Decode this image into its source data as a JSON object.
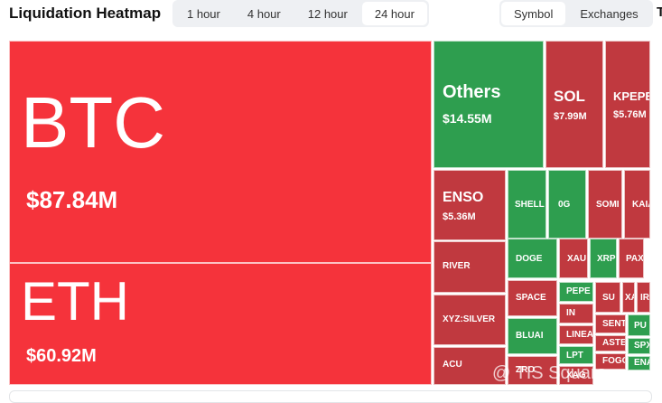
{
  "header": {
    "title": "Liquidation Heatmap",
    "time_ranges": [
      "1 hour",
      "4 hour",
      "12 hour",
      "24 hour"
    ],
    "active_range": 3,
    "views": [
      "Symbol",
      "Exchanges"
    ],
    "active_view": 0,
    "cut_off": "T"
  },
  "watermark": "@ TIS Square",
  "tiles": [
    {
      "label": "BTC",
      "value": "$87.84M",
      "color": "#f5333b"
    },
    {
      "label": "ETH",
      "value": "$60.92M",
      "color": "#f5333b"
    },
    {
      "label": "Others",
      "value": "$14.55M",
      "color": "#2e9e4f"
    },
    {
      "label": "SOL",
      "value": "$7.99M",
      "color": "#c0393f"
    },
    {
      "label": "KPEPE",
      "value": "$5.76M",
      "color": "#c0393f"
    },
    {
      "label": "ENSO",
      "value": "$5.36M",
      "color": "#c0393f"
    },
    {
      "label": "SHELL",
      "color": "#2e9e4f"
    },
    {
      "label": "0G",
      "color": "#2e9e4f"
    },
    {
      "label": "SOMI",
      "color": "#c0393f"
    },
    {
      "label": "KAIA",
      "color": "#c0393f"
    },
    {
      "label": "RIVER",
      "color": "#c0393f"
    },
    {
      "label": "XYZ:SILVER",
      "color": "#c0393f"
    },
    {
      "label": "ACU",
      "color": "#c0393f"
    },
    {
      "label": "DOGE",
      "color": "#2e9e4f"
    },
    {
      "label": "XAU",
      "color": "#c0393f"
    },
    {
      "label": "XRP",
      "color": "#2e9e4f"
    },
    {
      "label": "PAXG",
      "color": "#c0393f"
    },
    {
      "label": "SPACE",
      "color": "#c0393f"
    },
    {
      "label": "PEPE",
      "color": "#2e9e4f"
    },
    {
      "label": "IN",
      "color": "#c0393f"
    },
    {
      "label": "SU",
      "color": "#c0393f"
    },
    {
      "label": "XA",
      "color": "#c0393f"
    },
    {
      "label": "IR",
      "color": "#c0393f"
    },
    {
      "label": "BLUAI",
      "color": "#2e9e4f"
    },
    {
      "label": "LINEA",
      "color": "#c0393f"
    },
    {
      "label": "SENT",
      "color": "#c0393f"
    },
    {
      "label": "PU",
      "color": "#2e9e4f"
    },
    {
      "label": "LPT",
      "color": "#2e9e4f"
    },
    {
      "label": "ASTE",
      "color": "#c0393f"
    },
    {
      "label": "SPX",
      "color": "#2e9e4f"
    },
    {
      "label": "ZRO",
      "color": "#c0393f"
    },
    {
      "label": "XAG",
      "color": "#c0393f"
    },
    {
      "label": "FOGO",
      "color": "#c0393f"
    },
    {
      "label": "ENA",
      "color": "#2e9e4f"
    }
  ]
}
